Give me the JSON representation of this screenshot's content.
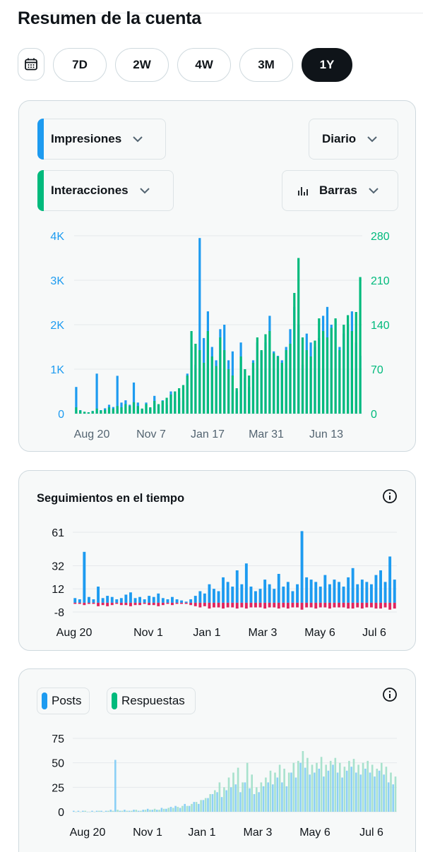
{
  "page": {
    "title": "Resumen de la cuenta"
  },
  "range_buttons": [
    "7D",
    "2W",
    "4W",
    "3M",
    "1Y"
  ],
  "active_range": "1Y",
  "overview": {
    "metric_primary": {
      "label": "Impresiones",
      "color": "#1d9bf0"
    },
    "metric_secondary": {
      "label": "Interacciones",
      "color": "#00ba7c"
    },
    "granularity": "Diario",
    "chart_style": "Barras"
  },
  "followers_card": {
    "title": "Seguimientos en el tiempo"
  },
  "posts_card": {
    "legend_posts": "Posts",
    "legend_replies": "Respuestas",
    "color_posts": "#1d9bf0",
    "color_replies": "#00ba7c"
  },
  "chart_data": [
    {
      "type": "bar",
      "title": "",
      "x_tick_labels": [
        "Aug 20",
        "Nov 7",
        "Jan 17",
        "Mar 31",
        "Jun 13"
      ],
      "y_left_ticks": [
        "0",
        "1K",
        "2K",
        "3K",
        "4K"
      ],
      "y_right_ticks": [
        "0",
        "70",
        "140",
        "210",
        "280"
      ],
      "ylim_left": [
        0,
        4000
      ],
      "ylim_right": [
        0,
        280
      ],
      "grid": true,
      "series": [
        {
          "name": "Impresiones",
          "color": "#1d9bf0",
          "axis": "left",
          "values": [
            600,
            80,
            40,
            30,
            60,
            900,
            80,
            120,
            200,
            150,
            850,
            250,
            300,
            200,
            700,
            250,
            100,
            250,
            120,
            400,
            200,
            300,
            200,
            500,
            300,
            350,
            300,
            900,
            1500,
            1100,
            3950,
            1700,
            2300,
            1500,
            1200,
            1900,
            2000,
            1200,
            1400,
            500,
            1600,
            800,
            600,
            1200,
            1600,
            1400,
            1600,
            2200,
            1400,
            1300,
            1200,
            1500,
            1900,
            2400,
            2000,
            1100,
            1800,
            1600,
            1500,
            1700,
            2200,
            2400,
            2000,
            2100,
            1500,
            1800,
            2000,
            2300,
            1600,
            1300
          ]
        },
        {
          "name": "Interacciones",
          "color": "#00ba7c",
          "axis": "right",
          "values": [
            10,
            5,
            3,
            2,
            4,
            8,
            5,
            6,
            10,
            8,
            12,
            10,
            15,
            12,
            18,
            12,
            8,
            15,
            10,
            20,
            15,
            20,
            25,
            30,
            35,
            40,
            45,
            60,
            130,
            110,
            100,
            80,
            130,
            90,
            75,
            120,
            100,
            70,
            60,
            40,
            90,
            70,
            60,
            80,
            120,
            100,
            125,
            130,
            95,
            90,
            80,
            100,
            110,
            190,
            245,
            120,
            100,
            90,
            115,
            150,
            130,
            120,
            135,
            150,
            100,
            140,
            155,
            130,
            160,
            215
          ]
        }
      ]
    },
    {
      "type": "bar",
      "title": "Seguimientos en el tiempo",
      "x_tick_labels": [
        "Aug 20",
        "Nov 1",
        "Jan 1",
        "Mar 3",
        "May 6",
        "Jul 6"
      ],
      "y_ticks": [
        "-8",
        "12",
        "32",
        "61"
      ],
      "ylim": [
        -8,
        61
      ],
      "grid": true,
      "series": [
        {
          "name": "",
          "color": "#1d9bf0",
          "values": [
            4,
            3,
            44,
            5,
            3,
            14,
            4,
            6,
            5,
            3,
            4,
            7,
            9,
            4,
            5,
            3,
            6,
            5,
            8,
            4,
            3,
            5,
            3,
            2,
            1,
            3,
            6,
            10,
            8,
            16,
            12,
            10,
            22,
            18,
            14,
            28,
            16,
            34,
            14,
            10,
            12,
            20,
            16,
            12,
            25,
            14,
            18,
            10,
            16,
            62,
            22,
            20,
            18,
            14,
            24,
            16,
            20,
            18,
            14,
            22,
            30,
            16,
            20,
            18,
            16,
            24,
            28,
            18,
            40,
            20
          ]
        },
        {
          "name": "",
          "color": "#e0245e",
          "values": [
            -1,
            -1,
            -2,
            -1,
            -1,
            -3,
            -2,
            -3,
            -2,
            -1,
            -2,
            -2,
            -3,
            -2,
            -2,
            -1,
            -2,
            -2,
            -3,
            -2,
            -1,
            -2,
            -1,
            -1,
            -1,
            -2,
            -3,
            -4,
            -3,
            -5,
            -4,
            -4,
            -5,
            -4,
            -4,
            -5,
            -4,
            -5,
            -4,
            -4,
            -4,
            -5,
            -4,
            -4,
            -5,
            -4,
            -5,
            -4,
            -4,
            -6,
            -4,
            -4,
            -5,
            -4,
            -4,
            -5,
            -4,
            -4,
            -4,
            -5,
            -5,
            -4,
            -5,
            -4,
            -4,
            -5,
            -5,
            -4,
            -6,
            -5
          ]
        }
      ]
    },
    {
      "type": "bar",
      "title": "",
      "x_tick_labels": [
        "Aug 20",
        "Nov 1",
        "Jan 1",
        "Mar 3",
        "May 6",
        "Jul 6"
      ],
      "y_ticks": [
        "0",
        "25",
        "50",
        "75"
      ],
      "ylim": [
        0,
        75
      ],
      "grid": true,
      "series": [
        {
          "name": "Posts",
          "color": "#1d9bf0",
          "values": [
            1,
            1,
            1,
            0,
            1,
            1,
            1,
            1,
            2,
            53,
            1,
            2,
            1,
            2,
            1,
            2,
            3,
            2,
            2,
            4,
            3,
            5,
            6,
            4,
            8,
            6,
            10,
            8,
            12,
            14,
            18,
            20,
            15,
            22,
            25,
            28,
            20,
            30,
            24,
            18,
            20,
            26,
            30,
            28,
            35,
            30,
            26,
            40,
            35,
            50,
            45,
            38,
            40,
            44,
            36,
            42,
            48,
            40,
            35,
            42,
            46,
            40,
            38,
            44,
            40,
            36,
            42,
            38,
            30,
            28
          ]
        },
        {
          "name": "Respuestas",
          "color": "#00ba7c",
          "values": [
            0,
            0,
            1,
            0,
            0,
            1,
            0,
            1,
            1,
            2,
            1,
            1,
            1,
            2,
            1,
            2,
            2,
            3,
            2,
            3,
            4,
            4,
            5,
            6,
            6,
            8,
            10,
            12,
            14,
            18,
            22,
            30,
            25,
            35,
            40,
            45,
            30,
            50,
            38,
            25,
            30,
            35,
            42,
            40,
            48,
            44,
            40,
            50,
            52,
            62,
            55,
            48,
            50,
            56,
            48,
            52,
            55,
            50,
            46,
            52,
            54,
            48,
            50,
            52,
            48,
            44,
            50,
            46,
            40,
            36
          ]
        }
      ]
    }
  ]
}
